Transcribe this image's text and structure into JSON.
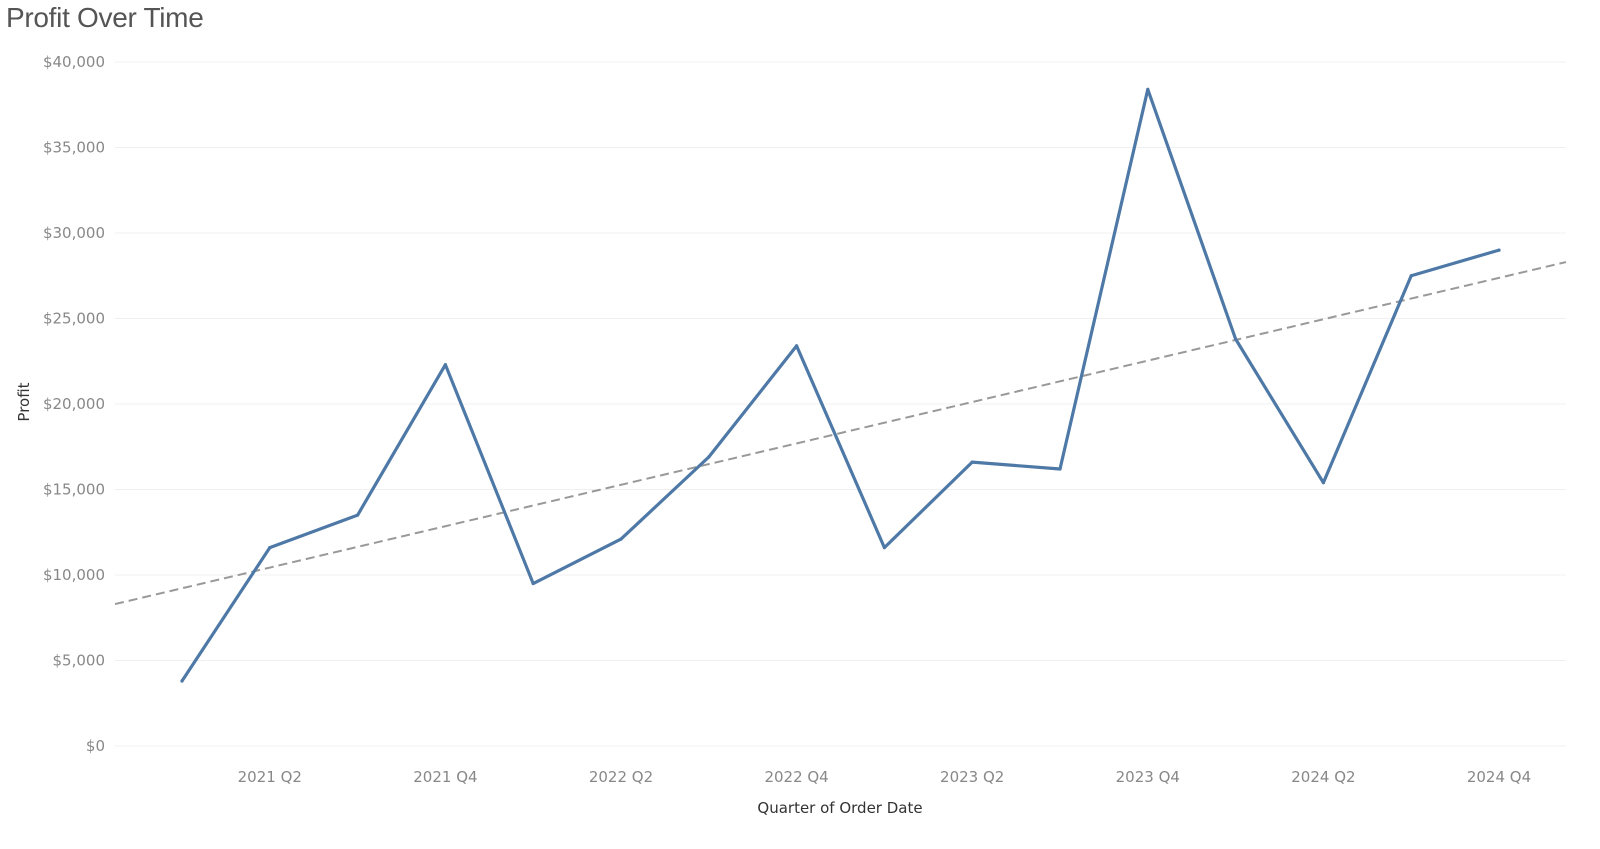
{
  "title": "Profit Over Time",
  "chart_data": {
    "type": "line",
    "xlabel": "Quarter of Order Date",
    "ylabel": "Profit",
    "ylim": [
      0,
      40000
    ],
    "y_ticks": [
      0,
      5000,
      10000,
      15000,
      20000,
      25000,
      30000,
      35000,
      40000
    ],
    "y_tick_labels": [
      "$0",
      "$5,000",
      "$10,000",
      "$15,000",
      "$20,000",
      "$25,000",
      "$30,000",
      "$35,000",
      "$40,000"
    ],
    "x": [
      "2021 Q1",
      "2021 Q2",
      "2021 Q3",
      "2021 Q4",
      "2022 Q1",
      "2022 Q2",
      "2022 Q3",
      "2022 Q4",
      "2023 Q1",
      "2023 Q2",
      "2023 Q3",
      "2023 Q4",
      "2024 Q1",
      "2024 Q2",
      "2024 Q3",
      "2024 Q4"
    ],
    "x_tick_labels": [
      "2021 Q2",
      "2021 Q4",
      "2022 Q2",
      "2022 Q4",
      "2023 Q2",
      "2023 Q4",
      "2024 Q2",
      "2024 Q4"
    ],
    "series": [
      {
        "values": [
          3800,
          11600,
          13500,
          22300,
          9500,
          12100,
          16900,
          23400,
          11600,
          16600,
          16200,
          38400,
          23800,
          15400,
          27500,
          29000
        ],
        "color": "#4e79a7"
      }
    ],
    "trend_line": {
      "start": 8300,
      "end": 28300,
      "style": "dashed",
      "color": "#999999"
    },
    "grid": true
  }
}
